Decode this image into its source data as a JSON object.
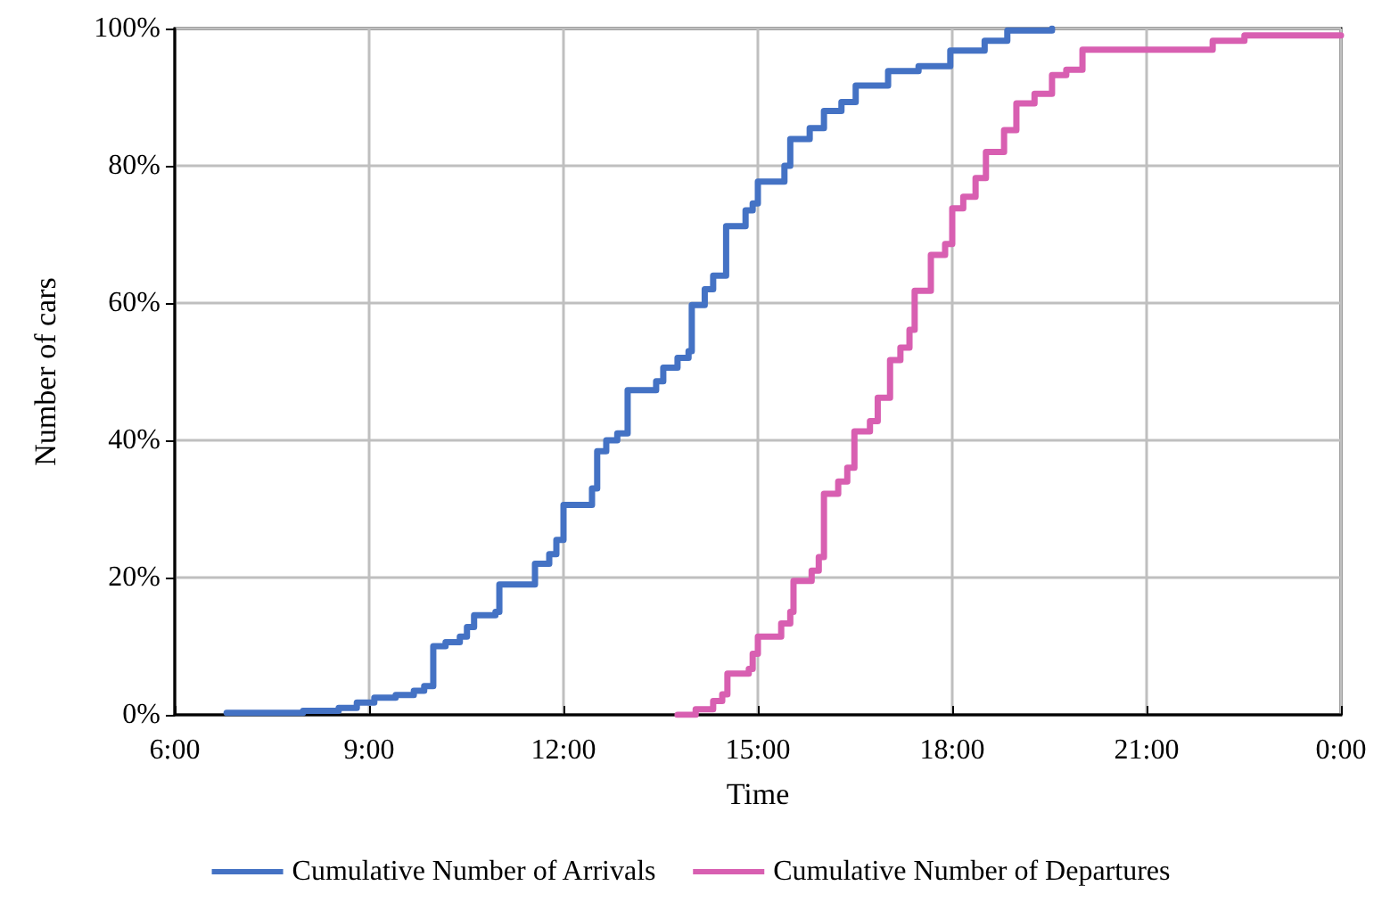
{
  "chart_data": {
    "type": "step",
    "xlabel": "Time",
    "ylabel": "Number of cars",
    "xlim": [
      6,
      24
    ],
    "xticks": [
      {
        "value": 6,
        "label": "6:00"
      },
      {
        "value": 9,
        "label": "9:00"
      },
      {
        "value": 12,
        "label": "12:00"
      },
      {
        "value": 15,
        "label": "15:00"
      },
      {
        "value": 18,
        "label": "18:00"
      },
      {
        "value": 21,
        "label": "21:00"
      },
      {
        "value": 24,
        "label": "0:00"
      }
    ],
    "ylim": [
      0,
      100
    ],
    "yticks": [
      {
        "value": 0,
        "label": "0%"
      },
      {
        "value": 20,
        "label": "20%"
      },
      {
        "value": 40,
        "label": "40%"
      },
      {
        "value": 60,
        "label": "60%"
      },
      {
        "value": 80,
        "label": "80%"
      },
      {
        "value": 100,
        "label": "100%"
      }
    ],
    "grid": true,
    "legend": "bottom",
    "marker": "none",
    "line_style": "solid",
    "series": [
      {
        "name": "Cumulative Number of Arrivals",
        "color": "#4472c4",
        "x": [
          6.8,
          7.98,
          8.53,
          8.81,
          9.08,
          9.41,
          9.69,
          9.85,
          9.99,
          10.18,
          10.4,
          10.51,
          10.62,
          10.95,
          11.01,
          11.56,
          11.78,
          11.89,
          12.0,
          12.44,
          12.52,
          12.66,
          12.83,
          12.99,
          13.43,
          13.54,
          13.76,
          13.93,
          13.98,
          14.18,
          14.31,
          14.51,
          14.81,
          14.92,
          15.0,
          15.41,
          15.5,
          15.8,
          16.02,
          16.29,
          16.51,
          17.01,
          17.48,
          17.97,
          18.5,
          18.85,
          19.54
        ],
        "values": [
          0.3,
          0.6,
          1.0,
          1.8,
          2.5,
          2.9,
          3.5,
          4.2,
          10,
          10.6,
          11.4,
          12.8,
          14.5,
          15,
          19,
          22,
          23.4,
          25.5,
          30.6,
          33,
          38.4,
          40,
          41,
          47.3,
          48.6,
          50.6,
          52,
          53,
          59.7,
          62,
          64,
          71.2,
          73.5,
          74.5,
          77.7,
          80,
          83.9,
          85.5,
          88,
          89.3,
          91.7,
          93.8,
          94.5,
          96.8,
          98.2,
          99.7,
          100
        ]
      },
      {
        "name": "Cumulative Number of Departures",
        "color": "#d85fb1",
        "x": [
          13.76,
          14.04,
          14.31,
          14.45,
          14.53,
          14.86,
          14.92,
          15.0,
          15.36,
          15.5,
          15.55,
          15.83,
          15.94,
          16.02,
          16.24,
          16.38,
          16.49,
          16.73,
          16.85,
          17.04,
          17.2,
          17.34,
          17.42,
          17.67,
          17.89,
          18.0,
          18.17,
          18.36,
          18.52,
          18.8,
          18.99,
          19.27,
          19.54,
          19.76,
          20.01,
          22.02,
          22.51,
          24.0
        ],
        "values": [
          0,
          0.8,
          2,
          3,
          6,
          6.7,
          8.9,
          11.4,
          13.3,
          15,
          19.5,
          21,
          23,
          32.2,
          34,
          36,
          41.3,
          42.8,
          46.2,
          51.7,
          53.5,
          56.1,
          61.8,
          67,
          68.6,
          73.8,
          75.5,
          78.2,
          82,
          85.2,
          89.1,
          90.5,
          93.2,
          94,
          96.9,
          98.2,
          99,
          99
        ]
      }
    ]
  }
}
